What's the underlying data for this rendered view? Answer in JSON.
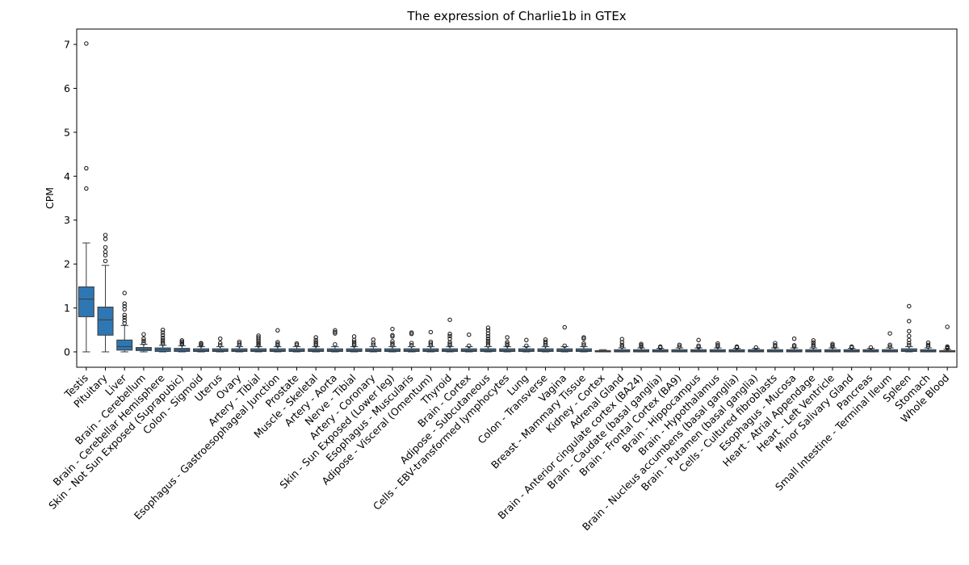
{
  "chart_data": {
    "type": "box",
    "title": "The expression of Charlie1b in GTEx",
    "xlabel": "",
    "ylabel": "CPM",
    "ylim": [
      -0.35,
      7.35
    ],
    "yticks": [
      0,
      1,
      2,
      3,
      4,
      5,
      6,
      7
    ],
    "grid": false,
    "legend": "none",
    "box_color": "#2f77b3",
    "categories": [
      "Testis",
      "Pituitary",
      "Liver",
      "Brain - Cerebellum",
      "Brain - Cerebellar Hemisphere",
      "Skin - Not Sun Exposed (Suprapubic)",
      "Colon - Sigmoid",
      "Uterus",
      "Ovary",
      "Artery - Tibial",
      "Esophagus - Gastroesophageal Junction",
      "Prostate",
      "Muscle - Skeletal",
      "Artery - Aorta",
      "Nerve - Tibial",
      "Artery - Coronary",
      "Skin - Sun Exposed (Lower leg)",
      "Esophagus - Muscularis",
      "Adipose - Visceral (Omentum)",
      "Thyroid",
      "Brain - Cortex",
      "Adipose - Subcutaneous",
      "Cells - EBV-transformed lymphocytes",
      "Lung",
      "Colon - Transverse",
      "Vagina",
      "Breast - Mammary Tissue",
      "Kidney - Cortex",
      "Adrenal Gland",
      "Brain - Anterior cingulate cortex (BA24)",
      "Brain - Caudate (basal ganglia)",
      "Brain - Frontal Cortex (BA9)",
      "Brain - Hippocampus",
      "Brain - Hypothalamus",
      "Brain - Nucleus accumbens (basal ganglia)",
      "Brain - Putamen (basal ganglia)",
      "Cells - Cultured fibroblasts",
      "Esophagus - Mucosa",
      "Heart - Atrial Appendage",
      "Heart - Left Ventricle",
      "Minor Salivary Gland",
      "Pancreas",
      "Small Intestine - Terminal Ileum",
      "Spleen",
      "Stomach",
      "Whole Blood"
    ],
    "boxes": [
      {
        "min": 0,
        "q1": 0.8,
        "median": 1.2,
        "q3": 1.48,
        "max": 2.48,
        "outliers": [
          3.72,
          4.18,
          7.02
        ]
      },
      {
        "min": 0,
        "q1": 0.38,
        "median": 0.73,
        "q3": 1.02,
        "max": 1.97,
        "outliers": [
          2.07,
          2.2,
          2.28,
          2.38,
          2.57,
          2.66
        ]
      },
      {
        "min": 0,
        "q1": 0.04,
        "median": 0.12,
        "q3": 0.27,
        "max": 0.6,
        "outliers": [
          0.65,
          0.72,
          0.78,
          0.84,
          0.97,
          1.04,
          1.1,
          1.34
        ]
      },
      {
        "min": 0,
        "q1": 0.03,
        "median": 0.06,
        "q3": 0.1,
        "max": 0.17,
        "outliers": [
          0.2,
          0.25,
          0.3,
          0.4
        ]
      },
      {
        "min": 0,
        "q1": 0.01,
        "median": 0.05,
        "q3": 0.09,
        "max": 0.15,
        "outliers": [
          0.18,
          0.22,
          0.27,
          0.32,
          0.38,
          0.44,
          0.5
        ]
      },
      {
        "min": 0,
        "q1": 0.01,
        "median": 0.04,
        "q3": 0.08,
        "max": 0.14,
        "outliers": [
          0.17,
          0.2,
          0.23,
          0.26
        ]
      },
      {
        "min": 0,
        "q1": 0.01,
        "median": 0.03,
        "q3": 0.07,
        "max": 0.12,
        "outliers": [
          0.15,
          0.18,
          0.2
        ]
      },
      {
        "min": 0,
        "q1": 0.01,
        "median": 0.03,
        "q3": 0.07,
        "max": 0.12,
        "outliers": [
          0.15,
          0.2,
          0.3
        ]
      },
      {
        "min": 0,
        "q1": 0.01,
        "median": 0.03,
        "q3": 0.07,
        "max": 0.12,
        "outliers": [
          0.15,
          0.19,
          0.23
        ]
      },
      {
        "min": 0,
        "q1": 0.01,
        "median": 0.03,
        "q3": 0.07,
        "max": 0.12,
        "outliers": [
          0.15,
          0.18,
          0.21,
          0.25,
          0.29,
          0.33,
          0.37
        ]
      },
      {
        "min": 0,
        "q1": 0.01,
        "median": 0.03,
        "q3": 0.07,
        "max": 0.12,
        "outliers": [
          0.15,
          0.18,
          0.22,
          0.49
        ]
      },
      {
        "min": 0,
        "q1": 0.01,
        "median": 0.03,
        "q3": 0.07,
        "max": 0.12,
        "outliers": [
          0.16,
          0.19
        ]
      },
      {
        "min": 0,
        "q1": 0.01,
        "median": 0.03,
        "q3": 0.07,
        "max": 0.12,
        "outliers": [
          0.15,
          0.18,
          0.22,
          0.27,
          0.33
        ]
      },
      {
        "min": 0,
        "q1": 0.01,
        "median": 0.03,
        "q3": 0.07,
        "max": 0.12,
        "outliers": [
          0.17,
          0.42,
          0.45,
          0.49
        ]
      },
      {
        "min": 0,
        "q1": 0.01,
        "median": 0.03,
        "q3": 0.07,
        "max": 0.12,
        "outliers": [
          0.15,
          0.18,
          0.22,
          0.27,
          0.35
        ]
      },
      {
        "min": 0,
        "q1": 0.01,
        "median": 0.03,
        "q3": 0.07,
        "max": 0.12,
        "outliers": [
          0.16,
          0.2,
          0.28
        ]
      },
      {
        "min": 0,
        "q1": 0.01,
        "median": 0.03,
        "q3": 0.07,
        "max": 0.12,
        "outliers": [
          0.15,
          0.19,
          0.24,
          0.35,
          0.38,
          0.52
        ]
      },
      {
        "min": 0,
        "q1": 0.01,
        "median": 0.03,
        "q3": 0.07,
        "max": 0.12,
        "outliers": [
          0.15,
          0.2,
          0.41,
          0.44
        ]
      },
      {
        "min": 0,
        "q1": 0.01,
        "median": 0.03,
        "q3": 0.07,
        "max": 0.12,
        "outliers": [
          0.15,
          0.19,
          0.23,
          0.45
        ]
      },
      {
        "min": 0,
        "q1": 0.01,
        "median": 0.03,
        "q3": 0.07,
        "max": 0.12,
        "outliers": [
          0.15,
          0.18,
          0.22,
          0.3,
          0.36,
          0.41,
          0.73
        ]
      },
      {
        "min": 0,
        "q1": 0.01,
        "median": 0.03,
        "q3": 0.07,
        "max": 0.12,
        "outliers": [
          0.14,
          0.39
        ]
      },
      {
        "min": 0,
        "q1": 0.01,
        "median": 0.03,
        "q3": 0.07,
        "max": 0.12,
        "outliers": [
          0.15,
          0.2,
          0.25,
          0.3,
          0.36,
          0.42,
          0.49,
          0.55
        ]
      },
      {
        "min": 0,
        "q1": 0.01,
        "median": 0.03,
        "q3": 0.07,
        "max": 0.12,
        "outliers": [
          0.15,
          0.18,
          0.22,
          0.33
        ]
      },
      {
        "min": 0,
        "q1": 0.01,
        "median": 0.03,
        "q3": 0.07,
        "max": 0.12,
        "outliers": [
          0.14,
          0.27
        ]
      },
      {
        "min": 0,
        "q1": 0.01,
        "median": 0.03,
        "q3": 0.07,
        "max": 0.12,
        "outliers": [
          0.15,
          0.19,
          0.23,
          0.28
        ]
      },
      {
        "min": 0,
        "q1": 0.01,
        "median": 0.03,
        "q3": 0.07,
        "max": 0.12,
        "outliers": [
          0.14,
          0.56
        ]
      },
      {
        "min": 0,
        "q1": 0.01,
        "median": 0.03,
        "q3": 0.07,
        "max": 0.12,
        "outliers": [
          0.15,
          0.19,
          0.3,
          0.33
        ]
      },
      {
        "min": 0,
        "q1": 0.0,
        "median": 0.01,
        "q3": 0.03,
        "max": 0.05,
        "outliers": []
      },
      {
        "min": 0,
        "q1": 0.0,
        "median": 0.02,
        "q3": 0.05,
        "max": 0.09,
        "outliers": [
          0.12,
          0.16,
          0.22,
          0.29
        ]
      },
      {
        "min": 0,
        "q1": 0.0,
        "median": 0.02,
        "q3": 0.05,
        "max": 0.09,
        "outliers": [
          0.12,
          0.15,
          0.18
        ]
      },
      {
        "min": 0,
        "q1": 0.0,
        "median": 0.02,
        "q3": 0.05,
        "max": 0.08,
        "outliers": [
          0.1,
          0.12
        ]
      },
      {
        "min": 0,
        "q1": 0.0,
        "median": 0.02,
        "q3": 0.05,
        "max": 0.09,
        "outliers": [
          0.12,
          0.16
        ]
      },
      {
        "min": 0,
        "q1": 0.0,
        "median": 0.02,
        "q3": 0.05,
        "max": 0.09,
        "outliers": [
          0.11,
          0.14,
          0.27
        ]
      },
      {
        "min": 0,
        "q1": 0.0,
        "median": 0.02,
        "q3": 0.05,
        "max": 0.09,
        "outliers": [
          0.12,
          0.15,
          0.19
        ]
      },
      {
        "min": 0,
        "q1": 0.0,
        "median": 0.02,
        "q3": 0.05,
        "max": 0.08,
        "outliers": [
          0.1,
          0.12
        ]
      },
      {
        "min": 0,
        "q1": 0.0,
        "median": 0.02,
        "q3": 0.05,
        "max": 0.08,
        "outliers": [
          0.1
        ]
      },
      {
        "min": 0,
        "q1": 0.0,
        "median": 0.02,
        "q3": 0.05,
        "max": 0.09,
        "outliers": [
          0.12,
          0.15,
          0.2
        ]
      },
      {
        "min": 0,
        "q1": 0.0,
        "median": 0.02,
        "q3": 0.05,
        "max": 0.09,
        "outliers": [
          0.12,
          0.15,
          0.3
        ]
      },
      {
        "min": 0,
        "q1": 0.0,
        "median": 0.02,
        "q3": 0.05,
        "max": 0.09,
        "outliers": [
          0.12,
          0.16,
          0.21,
          0.26
        ]
      },
      {
        "min": 0,
        "q1": 0.0,
        "median": 0.02,
        "q3": 0.05,
        "max": 0.09,
        "outliers": [
          0.12,
          0.15,
          0.18
        ]
      },
      {
        "min": 0,
        "q1": 0.0,
        "median": 0.02,
        "q3": 0.05,
        "max": 0.08,
        "outliers": [
          0.1,
          0.12
        ]
      },
      {
        "min": 0,
        "q1": 0.0,
        "median": 0.02,
        "q3": 0.05,
        "max": 0.08,
        "outliers": [
          0.1
        ]
      },
      {
        "min": 0,
        "q1": 0.0,
        "median": 0.02,
        "q3": 0.05,
        "max": 0.09,
        "outliers": [
          0.12,
          0.16,
          0.42
        ]
      },
      {
        "min": 0,
        "q1": 0.01,
        "median": 0.03,
        "q3": 0.07,
        "max": 0.12,
        "outliers": [
          0.15,
          0.2,
          0.27,
          0.36,
          0.47,
          0.7,
          1.04
        ]
      },
      {
        "min": 0,
        "q1": 0.0,
        "median": 0.02,
        "q3": 0.05,
        "max": 0.09,
        "outliers": [
          0.12,
          0.16,
          0.21
        ]
      },
      {
        "min": 0,
        "q1": 0.0,
        "median": 0.01,
        "q3": 0.03,
        "max": 0.06,
        "outliers": [
          0.08,
          0.1,
          0.12,
          0.57
        ]
      }
    ]
  }
}
